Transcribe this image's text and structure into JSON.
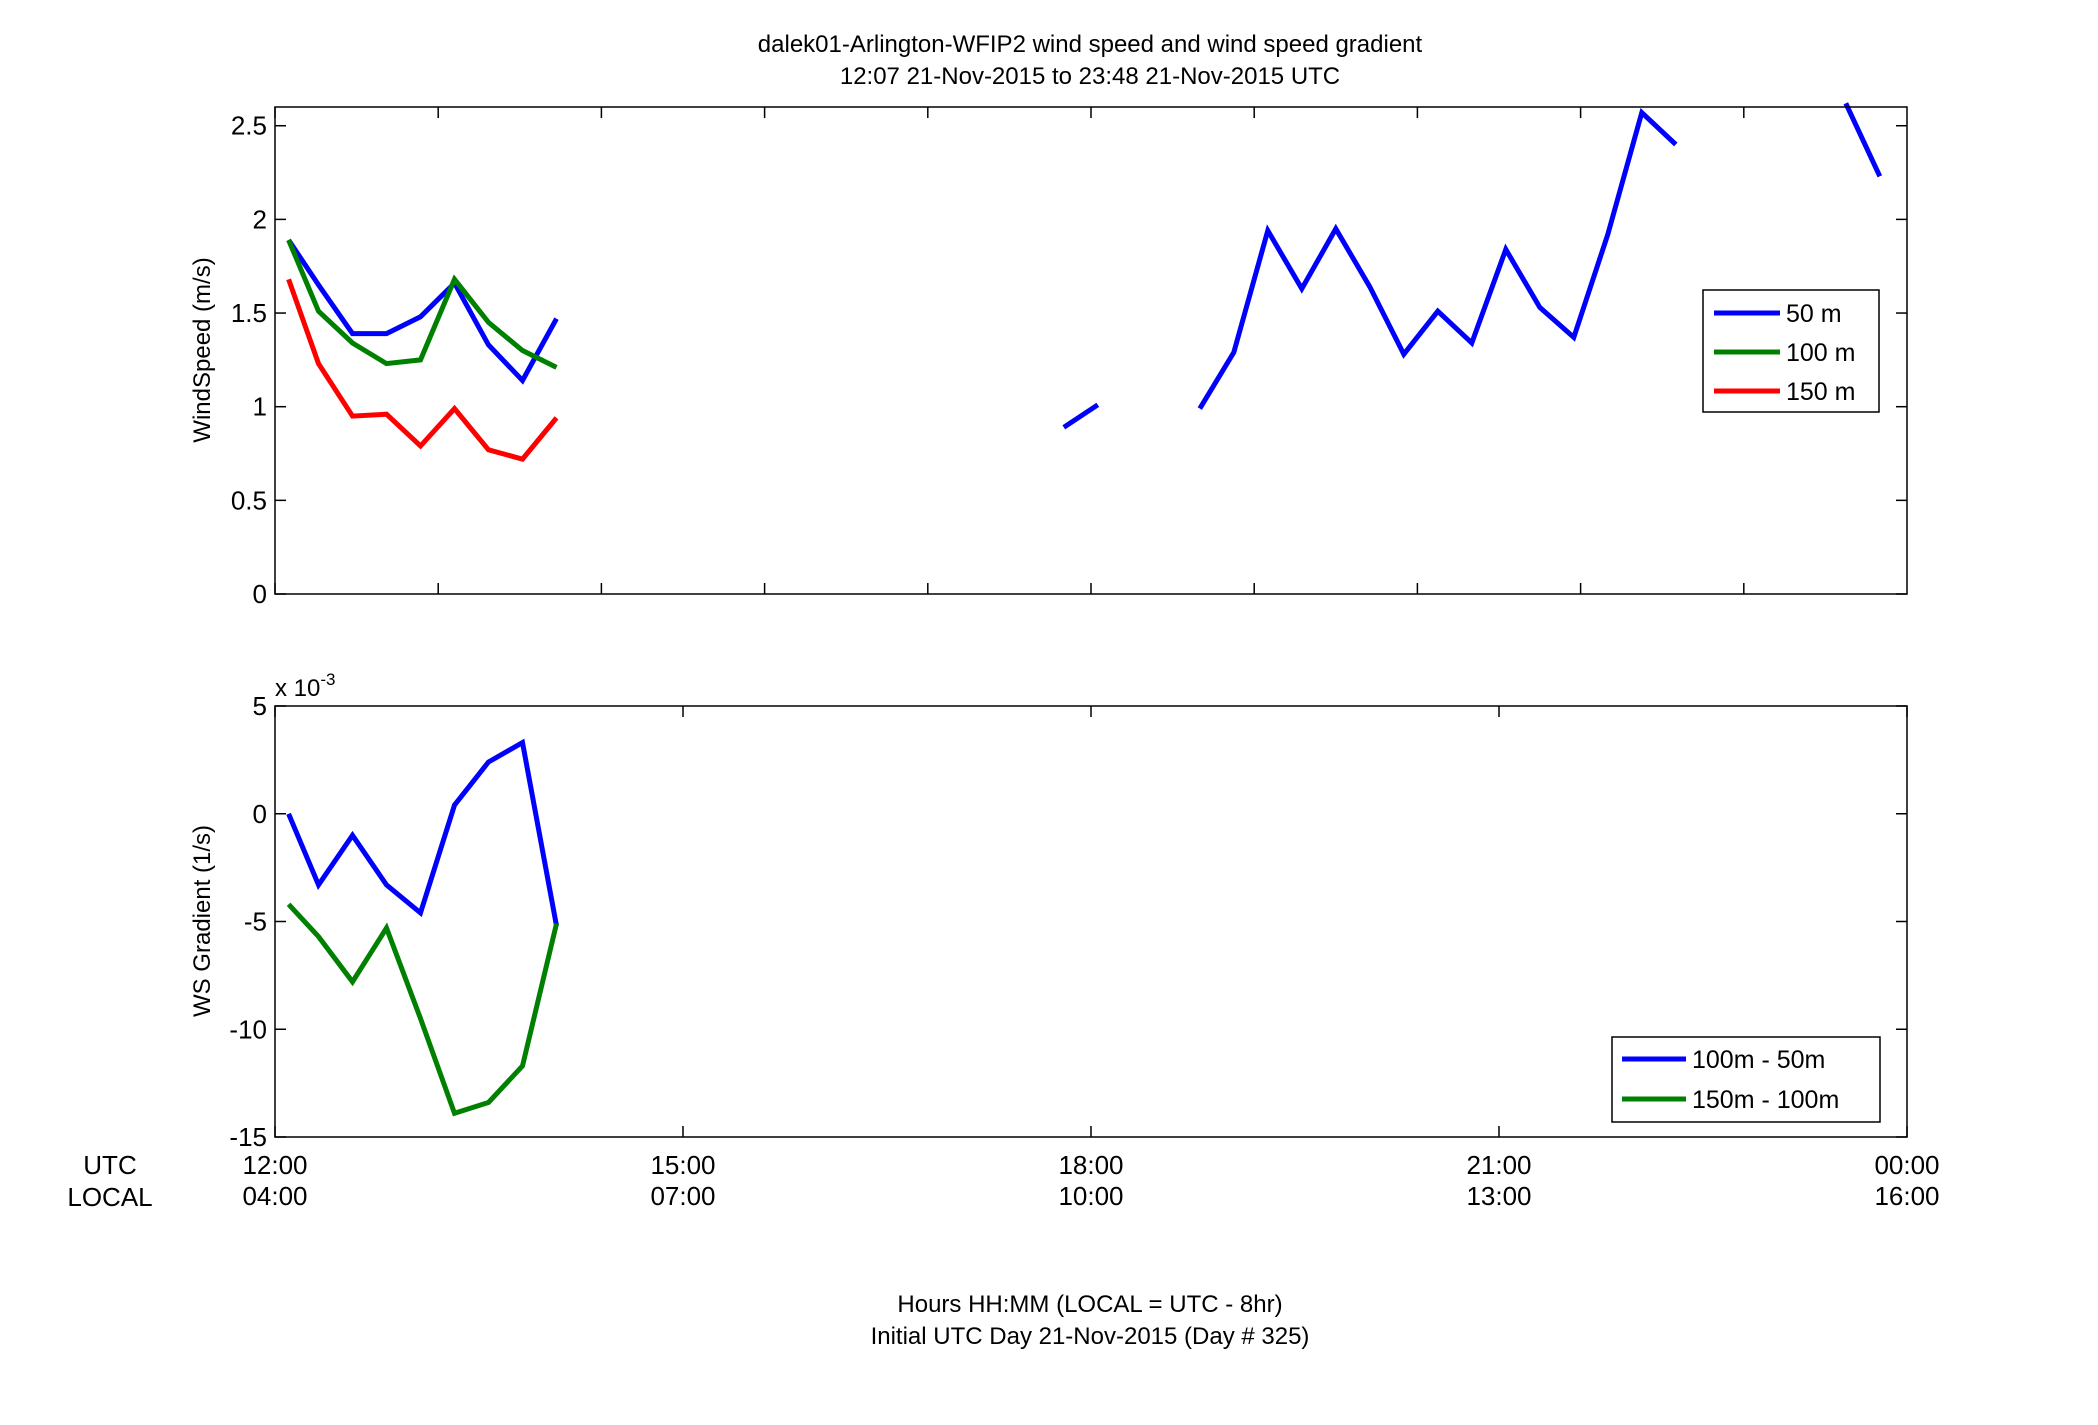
{
  "figure": {
    "title_line1": "dalek01-Arlington-WFIP2  wind speed and wind speed gradient",
    "title_line2": "12:07 21-Nov-2015 to 23:48 21-Nov-2015  UTC",
    "xlabel_line1": "Hours HH:MM  (LOCAL = UTC - 8hr)",
    "xlabel_line2": "Initial UTC Day 21-Nov-2015 (Day # 325)",
    "row_label_utc": "UTC",
    "row_label_local": "LOCAL"
  },
  "chart_data": [
    {
      "type": "line",
      "ylabel": "WindSpeed (m/s)",
      "xlim": [
        12.0,
        24.0
      ],
      "ylim": [
        0,
        2.6
      ],
      "yticks": [
        0,
        0.5,
        1,
        1.5,
        2,
        2.5
      ],
      "ytick_labels": [
        "0",
        "0.5",
        "1",
        "1.5",
        "2",
        "2.5"
      ],
      "xticks": [
        12,
        13.2,
        14.4,
        15.6,
        16.8,
        18,
        19.2,
        20.4,
        21.6,
        22.8
      ],
      "grid": false,
      "legend_position": "right",
      "series": [
        {
          "name": "50 m",
          "color": "#0000ff",
          "points": [
            [
              12.1,
              1.89
            ],
            [
              12.32,
              1.65
            ],
            [
              12.57,
              1.39
            ],
            [
              12.82,
              1.39
            ],
            [
              13.07,
              1.48
            ],
            [
              13.32,
              1.66
            ],
            [
              13.57,
              1.33
            ],
            [
              13.82,
              1.14
            ],
            [
              14.07,
              1.47
            ],
            null,
            [
              17.8,
              0.89
            ],
            [
              18.05,
              1.01
            ],
            null,
            [
              18.8,
              0.99
            ],
            [
              19.05,
              1.29
            ],
            [
              19.3,
              1.94
            ],
            [
              19.55,
              1.63
            ],
            [
              19.8,
              1.95
            ],
            [
              20.05,
              1.64
            ],
            [
              20.3,
              1.28
            ],
            [
              20.55,
              1.51
            ],
            [
              20.8,
              1.34
            ],
            [
              21.05,
              1.84
            ],
            [
              21.3,
              1.53
            ],
            [
              21.55,
              1.37
            ],
            [
              21.8,
              1.92
            ],
            [
              22.05,
              2.57
            ],
            [
              22.3,
              2.4
            ],
            null,
            [
              23.55,
              2.62
            ],
            [
              23.8,
              2.23
            ]
          ]
        },
        {
          "name": "100 m",
          "color": "#008000",
          "points": [
            [
              12.1,
              1.89
            ],
            [
              12.32,
              1.51
            ],
            [
              12.57,
              1.34
            ],
            [
              12.82,
              1.23
            ],
            [
              13.07,
              1.25
            ],
            [
              13.32,
              1.68
            ],
            [
              13.57,
              1.45
            ],
            [
              13.82,
              1.3
            ],
            [
              14.07,
              1.21
            ]
          ]
        },
        {
          "name": "150 m",
          "color": "#ff0000",
          "points": [
            [
              12.1,
              1.68
            ],
            [
              12.32,
              1.23
            ],
            [
              12.57,
              0.95
            ],
            [
              12.82,
              0.96
            ],
            [
              13.07,
              0.79
            ],
            [
              13.32,
              0.99
            ],
            [
              13.57,
              0.77
            ],
            [
              13.82,
              0.72
            ],
            [
              14.07,
              0.94
            ]
          ]
        }
      ]
    },
    {
      "type": "line",
      "ylabel": "WS Gradient (1/s)",
      "yexponent_prefix": "x 10",
      "yexponent_power": "-3",
      "xlim": [
        12.0,
        24.0
      ],
      "ylim": [
        -15,
        5
      ],
      "yticks": [
        -15,
        -10,
        -5,
        0,
        5
      ],
      "ytick_labels": [
        "-15",
        "-10",
        "-5",
        "0",
        "5"
      ],
      "xticks": [
        12,
        15,
        18,
        21,
        24
      ],
      "xtick_labels_utc": [
        "12:00",
        "15:00",
        "18:00",
        "21:00",
        "00:00"
      ],
      "xtick_labels_local": [
        "04:00",
        "07:00",
        "10:00",
        "13:00",
        "16:00"
      ],
      "grid": false,
      "legend_position": "bottom-right",
      "series": [
        {
          "name": "100m - 50m",
          "color": "#0000ff",
          "points": [
            [
              12.1,
              0.0
            ],
            [
              12.32,
              -3.3
            ],
            [
              12.57,
              -1.0
            ],
            [
              12.82,
              -3.3
            ],
            [
              13.07,
              -4.6
            ],
            [
              13.32,
              0.4
            ],
            [
              13.57,
              2.4
            ],
            [
              13.82,
              3.3
            ],
            [
              14.07,
              -5.2
            ]
          ]
        },
        {
          "name": "150m - 100m",
          "color": "#008000",
          "points": [
            [
              12.1,
              -4.2
            ],
            [
              12.32,
              -5.7
            ],
            [
              12.57,
              -7.8
            ],
            [
              12.82,
              -5.3
            ],
            [
              13.07,
              -9.5
            ],
            [
              13.32,
              -13.9
            ],
            [
              13.57,
              -13.4
            ],
            [
              13.82,
              -11.7
            ],
            [
              14.07,
              -5.1
            ]
          ]
        }
      ]
    }
  ]
}
